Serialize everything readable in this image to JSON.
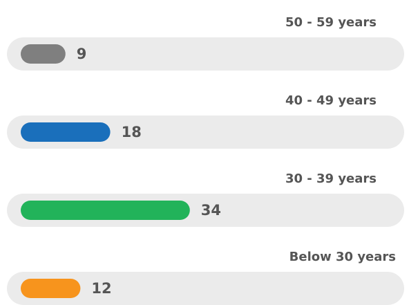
{
  "chart_data": {
    "type": "bar",
    "categories": [
      "50 - 59  years",
      "40 - 49  years",
      "30 - 39  years",
      "Below 30  years"
    ],
    "values": [
      9,
      18,
      34,
      12
    ],
    "colors": [
      "#7f7f7f",
      "#1a6fbb",
      "#22b35a",
      "#f7941d"
    ]
  }
}
